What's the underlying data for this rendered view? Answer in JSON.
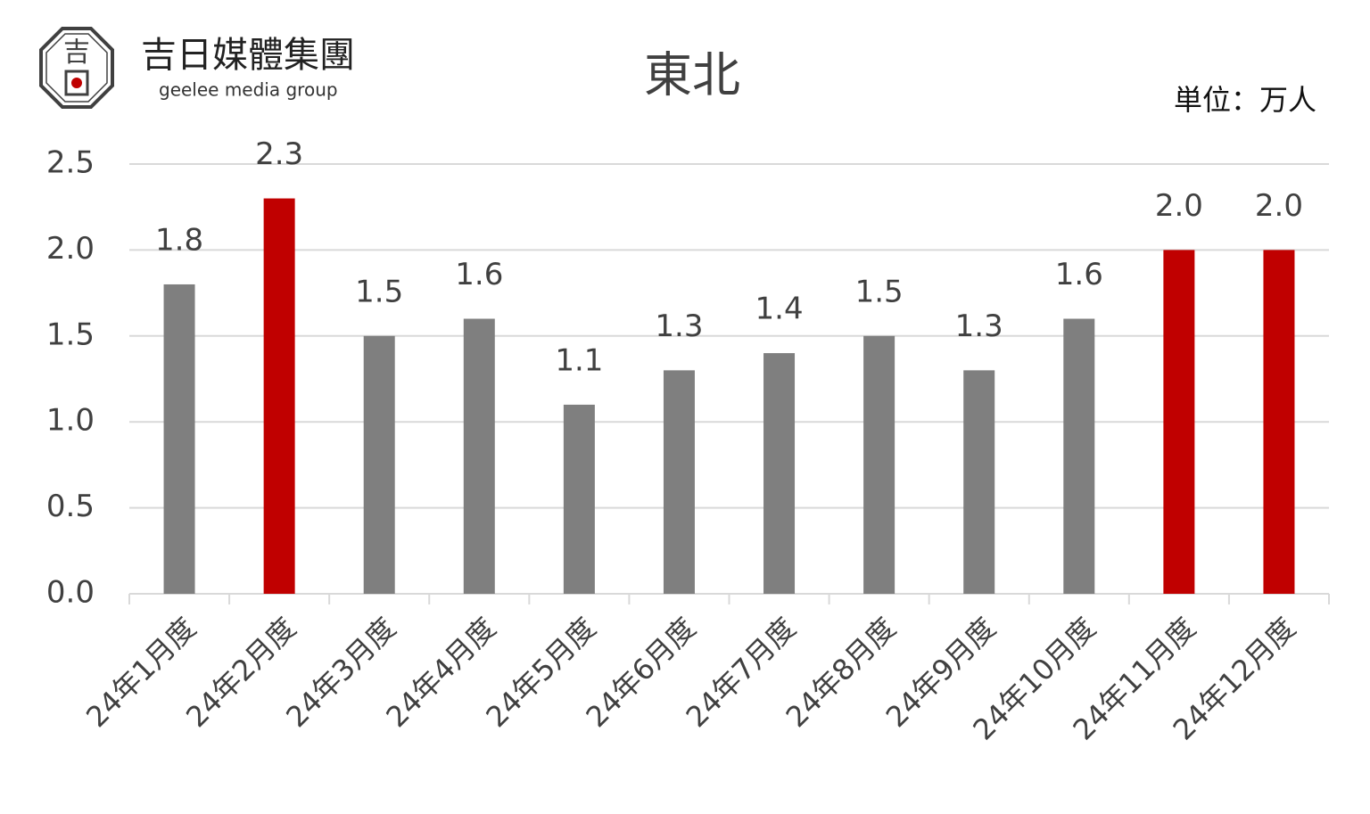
{
  "logo": {
    "mark_top": "吉",
    "mark_bottom": "日",
    "name": "吉日媒體集團",
    "tagline": "geelee media group"
  },
  "chart_data": {
    "type": "bar",
    "title": "東北",
    "unit_label": "単位：万人",
    "categories": [
      "24年1月度",
      "24年2月度",
      "24年3月度",
      "24年4月度",
      "24年5月度",
      "24年6月度",
      "24年7月度",
      "24年8月度",
      "24年9月度",
      "24年10月度",
      "24年11月度",
      "24年12月度"
    ],
    "values": [
      1.8,
      2.3,
      1.5,
      1.6,
      1.1,
      1.3,
      1.4,
      1.5,
      1.3,
      1.6,
      2.0,
      2.0
    ],
    "value_labels": [
      "1.8",
      "2.3",
      "1.5",
      "1.6",
      "1.1",
      "1.3",
      "1.4",
      "1.5",
      "1.3",
      "1.6",
      "2.0",
      "2.0"
    ],
    "colors": [
      "#7f7f7f",
      "#c00000",
      "#7f7f7f",
      "#7f7f7f",
      "#7f7f7f",
      "#7f7f7f",
      "#7f7f7f",
      "#7f7f7f",
      "#7f7f7f",
      "#7f7f7f",
      "#c00000",
      "#c00000"
    ],
    "ylim": [
      0,
      2.5
    ],
    "yticks": [
      {
        "value": 0,
        "label": "0.0"
      },
      0.5,
      {
        "value": 1,
        "label": "1.0"
      },
      1.5,
      {
        "value": 2,
        "label": "2.0"
      },
      2.5
    ],
    "grid": true
  }
}
